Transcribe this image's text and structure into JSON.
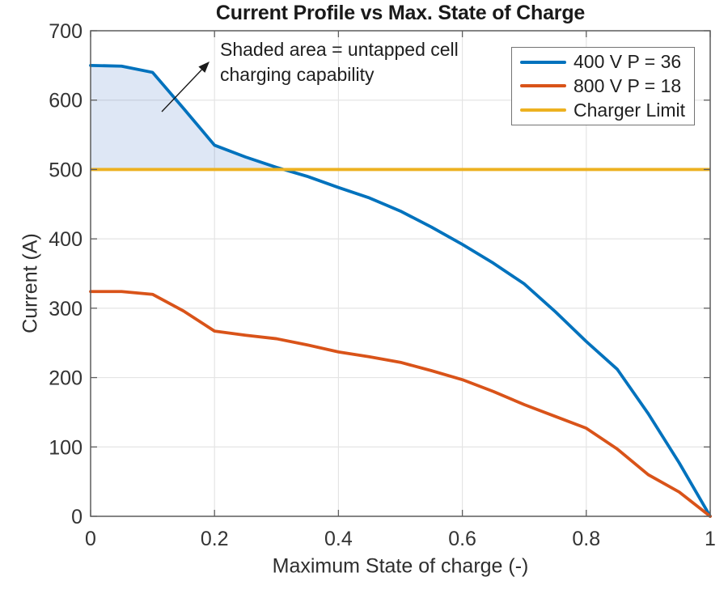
{
  "chart_data": {
    "type": "line",
    "title": "Current Profile vs Max. State of Charge",
    "xlabel": "Maximum State of charge (-)",
    "ylabel": "Current (A)",
    "xlim": [
      0,
      1
    ],
    "ylim": [
      0,
      700
    ],
    "xticks": [
      0,
      0.2,
      0.4,
      0.6,
      0.8,
      1
    ],
    "xtick_labels": [
      "0",
      "0.2",
      "0.4",
      "0.6",
      "0.8",
      "1"
    ],
    "yticks": [
      0,
      100,
      200,
      300,
      400,
      500,
      600,
      700
    ],
    "ytick_labels": [
      "0",
      "100",
      "200",
      "300",
      "400",
      "500",
      "600",
      "700"
    ],
    "grid": true,
    "legend_position": "top-right",
    "x": [
      0,
      0.05,
      0.1,
      0.15,
      0.2,
      0.25,
      0.3,
      0.35,
      0.4,
      0.45,
      0.5,
      0.55,
      0.6,
      0.65,
      0.7,
      0.75,
      0.8,
      0.85,
      0.9,
      0.95,
      1
    ],
    "series": [
      {
        "name": "400 V P = 36",
        "color": "#0072BD",
        "values": [
          650,
          649,
          640,
          588,
          535,
          518,
          503,
          490,
          474,
          459,
          440,
          417,
          392,
          365,
          335,
          295,
          252,
          212,
          148,
          77,
          0
        ]
      },
      {
        "name": "800 V P = 18",
        "color": "#D95319",
        "values": [
          324,
          324,
          320,
          296,
          267,
          261,
          256,
          247,
          237,
          230,
          222,
          210,
          197,
          180,
          161,
          144,
          127,
          97,
          60,
          35,
          0
        ]
      },
      {
        "name": "Charger Limit",
        "color": "#EDB120",
        "hline_value": 500
      }
    ],
    "shaded_area": {
      "meaning": "area between 400 V curve and charger limit where curve exceeds limit",
      "limit": 500,
      "fill": "#3A6FC4",
      "opacity": 0.17
    },
    "annotation": {
      "line1": "Shaded area = untapped cell",
      "line2": "charging capability"
    }
  }
}
